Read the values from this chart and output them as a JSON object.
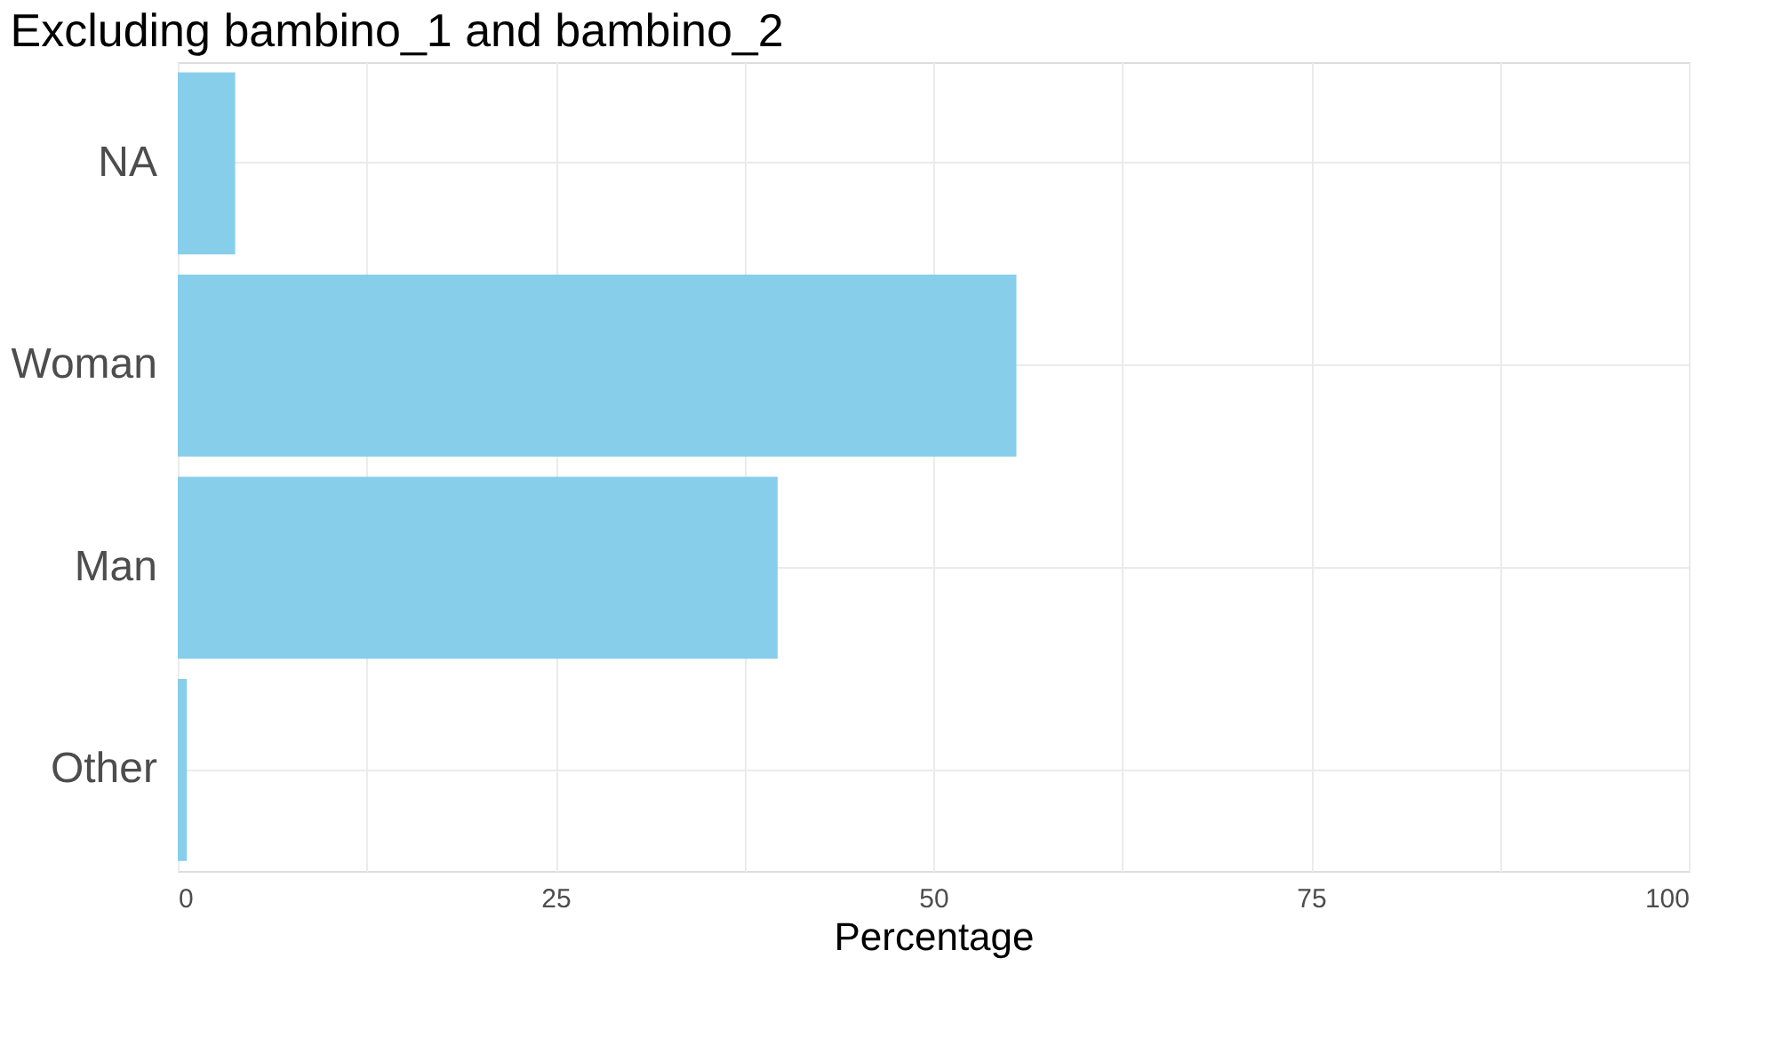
{
  "chart_data": {
    "type": "bar",
    "orientation": "horizontal",
    "title": "Excluding bambino_1 and bambino_2",
    "xlabel": "Percentage",
    "categories": [
      "NA",
      "Woman",
      "Man",
      "Other"
    ],
    "values": [
      3.8,
      55.5,
      39.7,
      0.6
    ],
    "color": "#87ceeb",
    "xlim": [
      0,
      100
    ],
    "xticks": [
      0,
      {
        "value": 12.5,
        "label": null
      },
      25,
      {
        "value": 37.5,
        "label": null
      },
      50,
      {
        "value": 62.5,
        "label": null
      },
      75,
      {
        "value": 87.5,
        "label": null
      },
      100
    ],
    "grid": true
  }
}
